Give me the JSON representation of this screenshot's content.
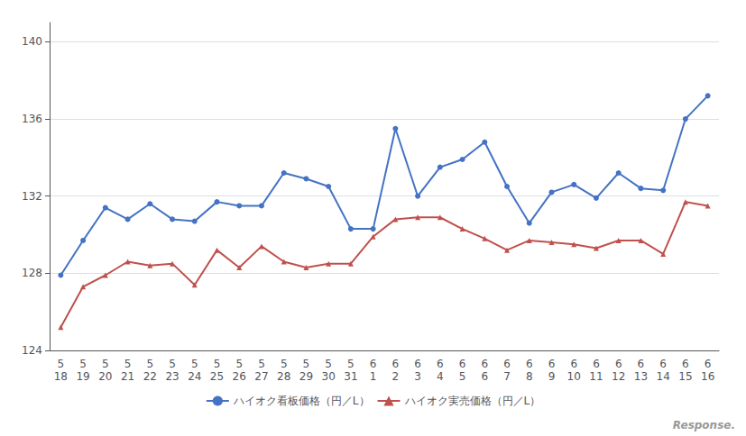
{
  "chart_data": {
    "type": "line",
    "categories": [
      "5\n18",
      "5\n19",
      "5\n20",
      "5\n21",
      "5\n22",
      "5\n23",
      "5\n24",
      "5\n25",
      "5\n26",
      "5\n27",
      "5\n28",
      "5\n29",
      "5\n30",
      "5\n31",
      "6\n1",
      "6\n2",
      "6\n3",
      "6\n4",
      "6\n5",
      "6\n6",
      "6\n7",
      "6\n8",
      "6\n9",
      "6\n10",
      "6\n11",
      "6\n12",
      "6\n13",
      "6\n14",
      "6\n15",
      "6\n16"
    ],
    "series": [
      {
        "name": "ハイオク看板価格（円／L）",
        "color": "#4472C4",
        "marker": "circle",
        "values": [
          127.9,
          129.7,
          131.4,
          130.8,
          131.6,
          130.8,
          130.7,
          131.7,
          131.5,
          131.5,
          133.2,
          132.9,
          132.5,
          130.3,
          130.3,
          135.5,
          132.0,
          133.5,
          133.9,
          134.8,
          132.5,
          130.6,
          132.2,
          132.6,
          131.9,
          133.2,
          132.4,
          132.3,
          136.0,
          137.2
        ]
      },
      {
        "name": "ハイオク実売価格（円／L）",
        "color": "#C0504D",
        "marker": "triangle",
        "values": [
          125.2,
          127.3,
          127.9,
          128.6,
          128.4,
          128.5,
          127.4,
          129.2,
          128.3,
          129.4,
          128.6,
          128.3,
          128.5,
          128.5,
          129.9,
          130.8,
          130.9,
          130.9,
          130.3,
          129.8,
          129.2,
          129.7,
          129.6,
          129.5,
          129.3,
          129.7,
          129.7,
          129.0,
          131.7,
          131.5
        ]
      }
    ],
    "ylim": [
      124,
      141
    ],
    "yticks": [
      124,
      128,
      132,
      136,
      140
    ],
    "grid": true,
    "legend": "bottom",
    "annotations": [
      "Response."
    ]
  }
}
